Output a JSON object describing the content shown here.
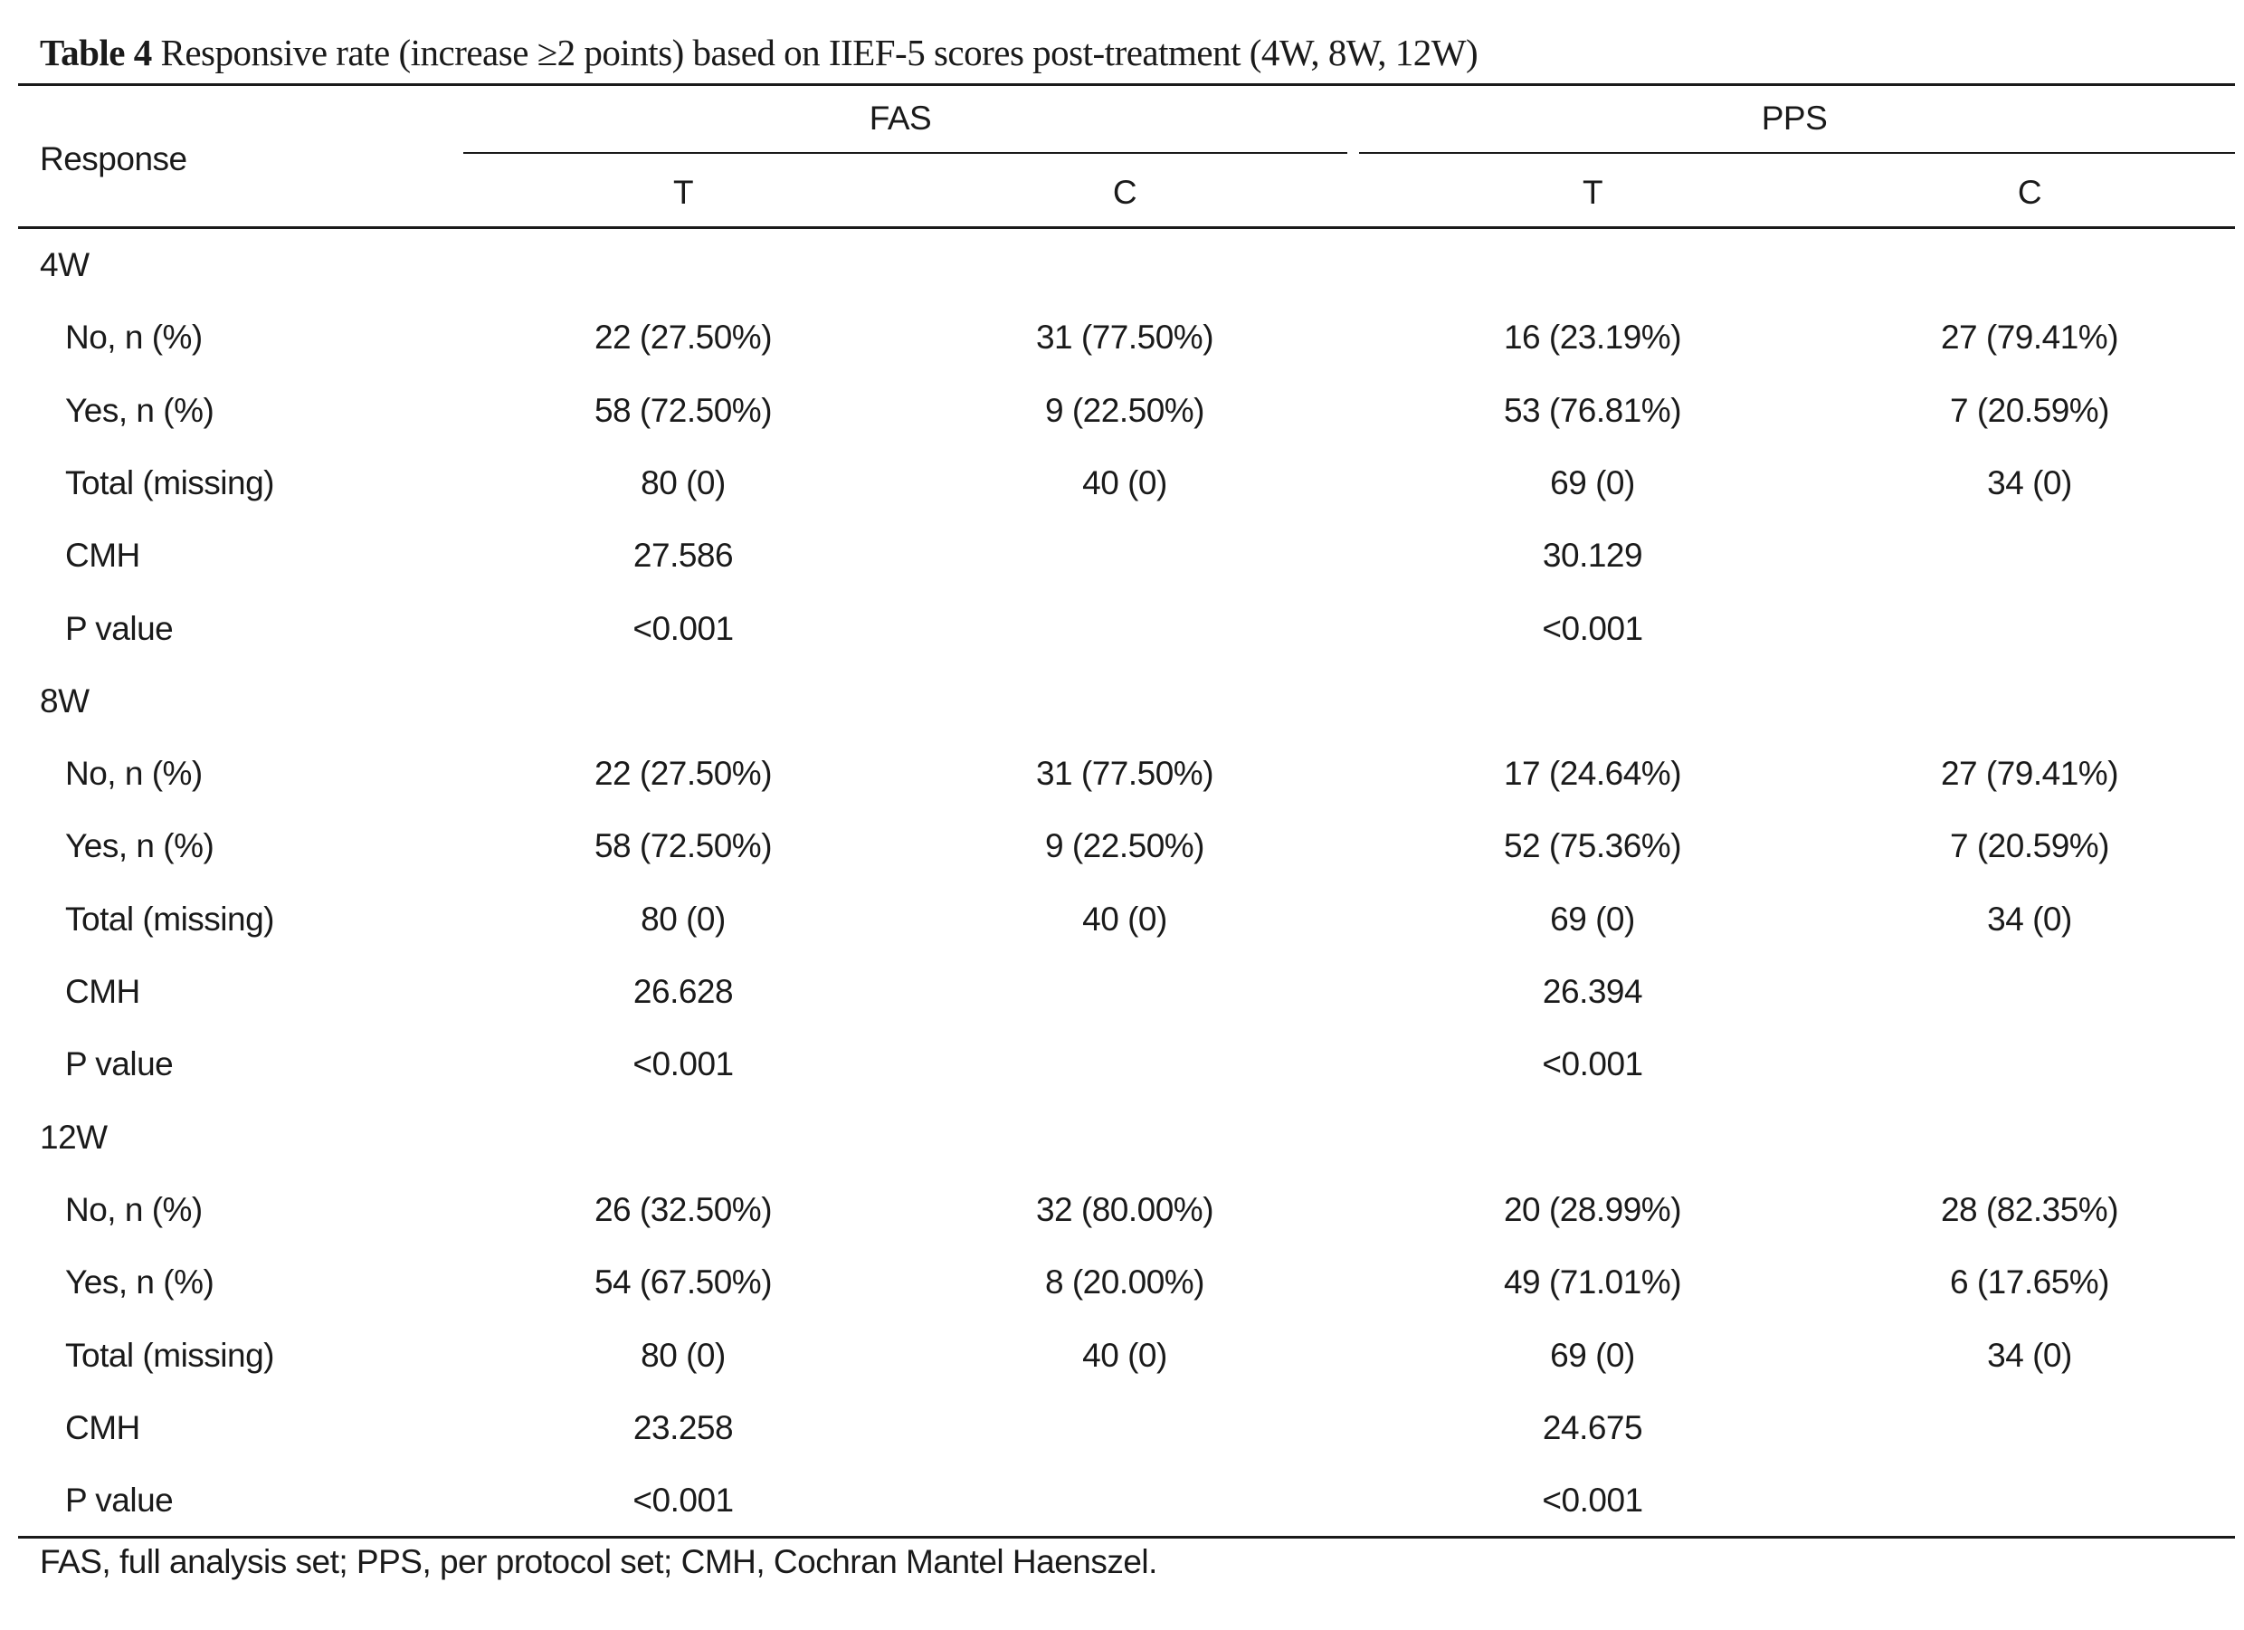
{
  "table": {
    "title_label": "Table 4",
    "title_text": "Responsive rate (increase ≥2 points) based on IIEF-5 scores post-treatment (4W, 8W, 12W)",
    "header": {
      "response": "Response",
      "fas": "FAS",
      "pps": "PPS",
      "fas_t": "T",
      "fas_c": "C",
      "pps_t": "T",
      "pps_c": "C"
    },
    "sections": [
      {
        "label": "4W",
        "rows": [
          {
            "label": "No, n (%)",
            "fas_t": "22 (27.50%)",
            "fas_c": "31 (77.50%)",
            "pps_t": "16 (23.19%)",
            "pps_c": "27 (79.41%)"
          },
          {
            "label": "Yes, n (%)",
            "fas_t": "58 (72.50%)",
            "fas_c": "9 (22.50%)",
            "pps_t": "53 (76.81%)",
            "pps_c": "7 (20.59%)"
          },
          {
            "label": "Total (missing)",
            "fas_t": "80 (0)",
            "fas_c": "40 (0)",
            "pps_t": "69 (0)",
            "pps_c": "34 (0)"
          },
          {
            "label": "CMH",
            "fas_t": "27.586",
            "fas_c": "",
            "pps_t": "30.129",
            "pps_c": ""
          },
          {
            "label": "P value",
            "fas_t": "<0.001",
            "fas_c": "",
            "pps_t": "<0.001",
            "pps_c": ""
          }
        ]
      },
      {
        "label": "8W",
        "rows": [
          {
            "label": "No, n (%)",
            "fas_t": "22 (27.50%)",
            "fas_c": "31 (77.50%)",
            "pps_t": "17 (24.64%)",
            "pps_c": "27 (79.41%)"
          },
          {
            "label": "Yes, n (%)",
            "fas_t": "58 (72.50%)",
            "fas_c": "9 (22.50%)",
            "pps_t": "52 (75.36%)",
            "pps_c": "7 (20.59%)"
          },
          {
            "label": "Total (missing)",
            "fas_t": "80 (0)",
            "fas_c": "40 (0)",
            "pps_t": "69 (0)",
            "pps_c": "34 (0)"
          },
          {
            "label": "CMH",
            "fas_t": "26.628",
            "fas_c": "",
            "pps_t": "26.394",
            "pps_c": ""
          },
          {
            "label": "P value",
            "fas_t": "<0.001",
            "fas_c": "",
            "pps_t": "<0.001",
            "pps_c": ""
          }
        ]
      },
      {
        "label": "12W",
        "rows": [
          {
            "label": "No, n (%)",
            "fas_t": "26 (32.50%)",
            "fas_c": "32 (80.00%)",
            "pps_t": "20 (28.99%)",
            "pps_c": "28 (82.35%)"
          },
          {
            "label": "Yes, n (%)",
            "fas_t": "54 (67.50%)",
            "fas_c": "8 (20.00%)",
            "pps_t": "49 (71.01%)",
            "pps_c": "6 (17.65%)"
          },
          {
            "label": "Total (missing)",
            "fas_t": "80 (0)",
            "fas_c": "40 (0)",
            "pps_t": "69 (0)",
            "pps_c": "34 (0)"
          },
          {
            "label": "CMH",
            "fas_t": "23.258",
            "fas_c": "",
            "pps_t": "24.675",
            "pps_c": ""
          },
          {
            "label": "P value",
            "fas_t": "<0.001",
            "fas_c": "",
            "pps_t": "<0.001",
            "pps_c": ""
          }
        ]
      }
    ],
    "footnote": "FAS, full analysis set; PPS, per protocol set; CMH, Cochran Mantel Haenszel."
  }
}
